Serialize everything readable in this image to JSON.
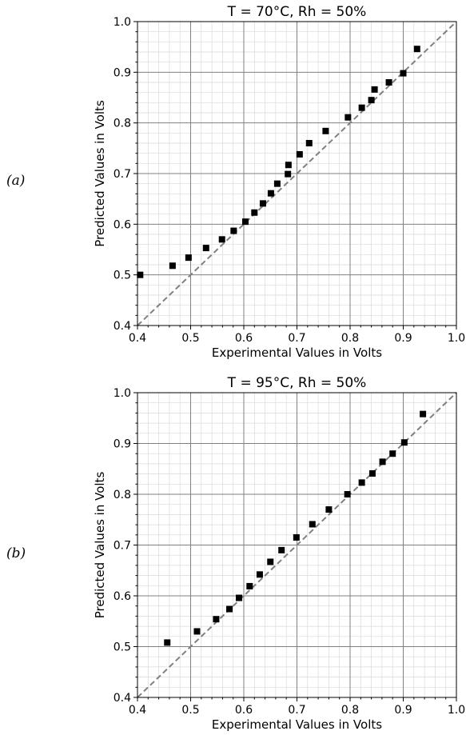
{
  "panels": [
    {
      "label": "(a)"
    },
    {
      "label": "(b)"
    }
  ],
  "colors": {
    "marker": "#000000",
    "reference_line": "#808080",
    "major_grid": "#808080",
    "minor_grid": "#d9d9d9"
  },
  "chart_data": [
    {
      "type": "scatter",
      "title": "T = 70°C, Rh = 50%",
      "xlabel": "Experimental Values in Volts",
      "ylabel": "Predicted Values in Volts",
      "xlim": [
        0.4,
        1.0
      ],
      "ylim": [
        0.4,
        1.0
      ],
      "x_ticks": [
        "0.4",
        "0.5",
        "0.6",
        "0.7",
        "0.8",
        "0.9",
        "1.0"
      ],
      "y_ticks": [
        "0.4",
        "0.5",
        "0.6",
        "0.7",
        "0.8",
        "0.9",
        "1.0"
      ],
      "grid": "major and minor",
      "reference_line": "y = x, dashed gray",
      "points": [
        [
          0.405,
          0.5
        ],
        [
          0.466,
          0.518
        ],
        [
          0.496,
          0.534
        ],
        [
          0.529,
          0.553
        ],
        [
          0.559,
          0.57
        ],
        [
          0.581,
          0.587
        ],
        [
          0.603,
          0.605
        ],
        [
          0.62,
          0.623
        ],
        [
          0.636,
          0.641
        ],
        [
          0.651,
          0.661
        ],
        [
          0.663,
          0.68
        ],
        [
          0.683,
          0.699
        ],
        [
          0.684,
          0.717
        ],
        [
          0.705,
          0.738
        ],
        [
          0.723,
          0.76
        ],
        [
          0.754,
          0.784
        ],
        [
          0.796,
          0.811
        ],
        [
          0.822,
          0.83
        ],
        [
          0.84,
          0.845
        ],
        [
          0.846,
          0.866
        ],
        [
          0.873,
          0.88
        ],
        [
          0.9,
          0.898
        ],
        [
          0.926,
          0.946
        ]
      ]
    },
    {
      "type": "scatter",
      "title": "T = 95°C, Rh = 50%",
      "xlabel": "Experimental Values in Volts",
      "ylabel": "Predicted Values in Volts",
      "xlim": [
        0.4,
        1.0
      ],
      "ylim": [
        0.4,
        1.0
      ],
      "x_ticks": [
        "0.4",
        "0.5",
        "0.6",
        "0.7",
        "0.8",
        "0.9",
        "1.0"
      ],
      "y_ticks": [
        "0.4",
        "0.5",
        "0.6",
        "0.7",
        "0.8",
        "0.9",
        "1.0"
      ],
      "grid": "major and minor",
      "reference_line": "y = x, dashed gray",
      "points": [
        [
          0.456,
          0.508
        ],
        [
          0.512,
          0.53
        ],
        [
          0.548,
          0.554
        ],
        [
          0.573,
          0.574
        ],
        [
          0.591,
          0.596
        ],
        [
          0.611,
          0.619
        ],
        [
          0.63,
          0.642
        ],
        [
          0.65,
          0.667
        ],
        [
          0.671,
          0.69
        ],
        [
          0.699,
          0.715
        ],
        [
          0.729,
          0.741
        ],
        [
          0.76,
          0.77
        ],
        [
          0.795,
          0.8
        ],
        [
          0.822,
          0.823
        ],
        [
          0.842,
          0.841
        ],
        [
          0.861,
          0.864
        ],
        [
          0.88,
          0.88
        ],
        [
          0.902,
          0.902
        ],
        [
          0.937,
          0.958
        ]
      ]
    }
  ]
}
